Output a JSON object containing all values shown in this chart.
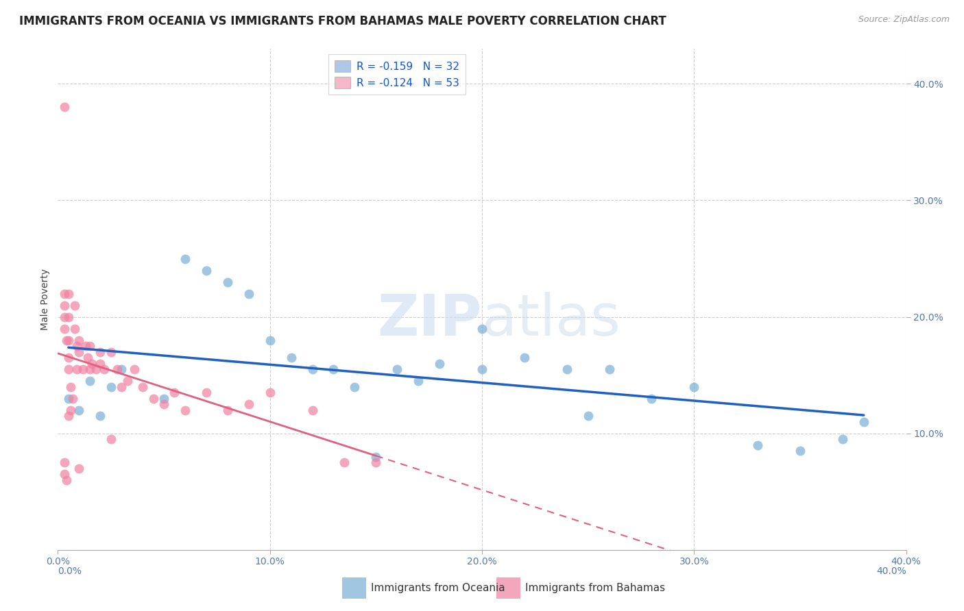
{
  "title": "IMMIGRANTS FROM OCEANIA VS IMMIGRANTS FROM BAHAMAS MALE POVERTY CORRELATION CHART",
  "source": "Source: ZipAtlas.com",
  "ylabel": "Male Poverty",
  "xlim": [
    0.0,
    0.4
  ],
  "ylim": [
    0.0,
    0.43
  ],
  "xticks": [
    0.0,
    0.1,
    0.2,
    0.3,
    0.4
  ],
  "yticks_right": [
    0.1,
    0.2,
    0.3,
    0.4
  ],
  "ytick_labels_right": [
    "10.0%",
    "20.0%",
    "30.0%",
    "40.0%"
  ],
  "xtick_labels": [
    "0.0%",
    "10.0%",
    "20.0%",
    "30.0%",
    "40.0%"
  ],
  "legend_items": [
    {
      "label": "R = -0.159   N = 32",
      "color": "#aec6e8"
    },
    {
      "label": "R = -0.124   N = 53",
      "color": "#f4b8c8"
    }
  ],
  "oceania_color": "#7aaed6",
  "bahamas_color": "#f080a0",
  "regression_oceania_color": "#2060c0",
  "regression_bahamas_color": "#e06080",
  "background_color": "#ffffff",
  "grid_color": "#cccccc",
  "oceania_x": [
    0.005,
    0.01,
    0.015,
    0.02,
    0.025,
    0.03,
    0.05,
    0.06,
    0.07,
    0.08,
    0.09,
    0.1,
    0.11,
    0.12,
    0.13,
    0.14,
    0.15,
    0.16,
    0.17,
    0.18,
    0.2,
    0.22,
    0.24,
    0.25,
    0.26,
    0.28,
    0.3,
    0.33,
    0.35,
    0.37,
    0.38,
    0.2
  ],
  "oceania_y": [
    0.13,
    0.12,
    0.145,
    0.115,
    0.14,
    0.155,
    0.13,
    0.25,
    0.24,
    0.23,
    0.22,
    0.18,
    0.165,
    0.155,
    0.155,
    0.14,
    0.08,
    0.155,
    0.145,
    0.16,
    0.19,
    0.165,
    0.155,
    0.115,
    0.155,
    0.13,
    0.14,
    0.09,
    0.085,
    0.095,
    0.11,
    0.155
  ],
  "bahamas_x": [
    0.003,
    0.003,
    0.003,
    0.003,
    0.003,
    0.004,
    0.005,
    0.005,
    0.005,
    0.005,
    0.005,
    0.006,
    0.007,
    0.008,
    0.008,
    0.009,
    0.009,
    0.01,
    0.01,
    0.012,
    0.013,
    0.014,
    0.015,
    0.015,
    0.016,
    0.018,
    0.02,
    0.02,
    0.022,
    0.025,
    0.028,
    0.03,
    0.033,
    0.036,
    0.04,
    0.045,
    0.05,
    0.055,
    0.06,
    0.07,
    0.08,
    0.09,
    0.1,
    0.12,
    0.135,
    0.15,
    0.003,
    0.003,
    0.004,
    0.005,
    0.006,
    0.01,
    0.025
  ],
  "bahamas_y": [
    0.38,
    0.22,
    0.21,
    0.2,
    0.19,
    0.18,
    0.22,
    0.2,
    0.18,
    0.165,
    0.155,
    0.14,
    0.13,
    0.21,
    0.19,
    0.175,
    0.155,
    0.18,
    0.17,
    0.155,
    0.175,
    0.165,
    0.155,
    0.175,
    0.16,
    0.155,
    0.17,
    0.16,
    0.155,
    0.17,
    0.155,
    0.14,
    0.145,
    0.155,
    0.14,
    0.13,
    0.125,
    0.135,
    0.12,
    0.135,
    0.12,
    0.125,
    0.135,
    0.12,
    0.075,
    0.075,
    0.075,
    0.065,
    0.06,
    0.115,
    0.12,
    0.07,
    0.095
  ]
}
